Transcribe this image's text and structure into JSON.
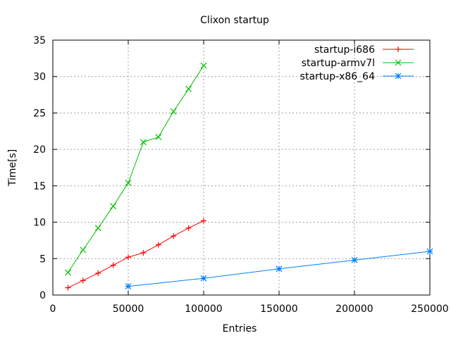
{
  "chart_data": {
    "type": "line",
    "title": "Clixon startup",
    "xlabel": "Entries",
    "ylabel": "Time[s]",
    "xlim": [
      0,
      250000
    ],
    "ylim": [
      0,
      35
    ],
    "xticks": [
      0,
      50000,
      100000,
      150000,
      200000,
      250000
    ],
    "yticks": [
      0,
      5,
      10,
      15,
      20,
      25,
      30,
      35
    ],
    "grid": true,
    "legend": "top-right",
    "series": [
      {
        "name": "startup-i686",
        "color": "#ff0000",
        "marker": "plus",
        "x": [
          10000,
          20000,
          30000,
          40000,
          50000,
          60000,
          70000,
          80000,
          90000,
          100000
        ],
        "y": [
          1.0,
          2.0,
          3.0,
          4.1,
          5.2,
          5.8,
          6.9,
          8.1,
          9.2,
          10.2
        ]
      },
      {
        "name": "startup-armv7l",
        "color": "#00c000",
        "marker": "cross",
        "x": [
          10000,
          20000,
          30000,
          40000,
          50000,
          60000,
          70000,
          80000,
          90000,
          100000
        ],
        "y": [
          3.1,
          6.2,
          9.2,
          12.2,
          15.4,
          21.0,
          21.7,
          25.2,
          28.3,
          31.5
        ]
      },
      {
        "name": "startup-x86_64",
        "color": "#0080ff",
        "marker": "star",
        "x": [
          50000,
          100000,
          150000,
          200000,
          250000
        ],
        "y": [
          1.2,
          2.3,
          3.6,
          4.8,
          6.0
        ]
      }
    ]
  }
}
